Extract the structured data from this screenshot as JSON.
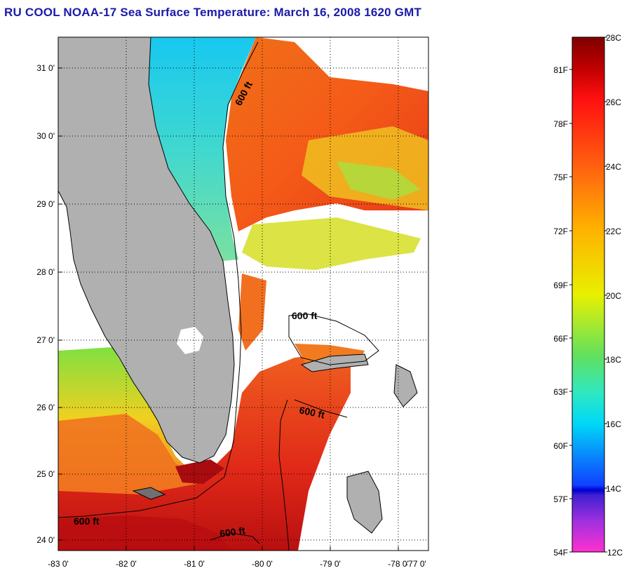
{
  "title": "RU COOL  NOAA-17  Sea Surface Temperature:  March 16, 2008 1620 GMT",
  "map": {
    "lat_ticks": [
      "31 0'",
      "30 0'",
      "29 0'",
      "28 0'",
      "27 0'",
      "26 0'",
      "25 0'",
      "24 0'"
    ],
    "lon_ticks": [
      "-83 0'",
      "-82 0'",
      "-81 0'",
      "-80 0'",
      "-79 0'",
      "-78 0'",
      "-77 0'"
    ],
    "contour_labels": [
      "600 ft",
      "600 ft",
      "600 ft",
      "600 ft",
      "600 ft"
    ],
    "colors": {
      "land": "#b0b0b0",
      "cloud": "#ffffff",
      "cold_water": "#29c4e8",
      "warm_water": "#f06018",
      "hot_water": "#c81010"
    }
  },
  "colorbar": {
    "celsius_labels": [
      "28C",
      "26C",
      "24C",
      "22C",
      "20C",
      "18C",
      "16C",
      "14C",
      "12C"
    ],
    "fahrenheit_labels": [
      "81F",
      "78F",
      "75F",
      "72F",
      "69F",
      "66F",
      "63F",
      "60F",
      "57F",
      "54F"
    ],
    "range_c": [
      12,
      28
    ]
  }
}
